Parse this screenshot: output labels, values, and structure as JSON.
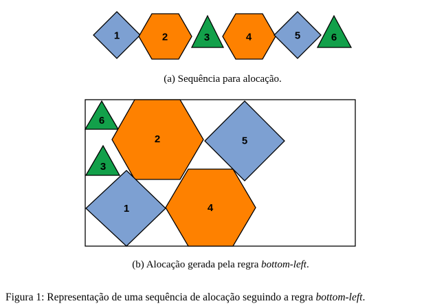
{
  "colors": {
    "diamond": "#7da0d2",
    "hexagon": "#fe8100",
    "triangle": "#12a04a",
    "stroke": "#000000"
  },
  "sequence": {
    "items": [
      {
        "shape": "diamond",
        "label": "1"
      },
      {
        "shape": "hexagon",
        "label": "2"
      },
      {
        "shape": "triangle",
        "label": "3"
      },
      {
        "shape": "hexagon",
        "label": "4"
      },
      {
        "shape": "diamond",
        "label": "5"
      },
      {
        "shape": "triangle",
        "label": "6"
      }
    ],
    "caption": "(a)  Sequência para alocação."
  },
  "allocation": {
    "items": [
      {
        "shape": "triangle",
        "label": "6"
      },
      {
        "shape": "hexagon",
        "label": "2"
      },
      {
        "shape": "diamond",
        "label": "5"
      },
      {
        "shape": "triangle",
        "label": "3"
      },
      {
        "shape": "diamond",
        "label": "1"
      },
      {
        "shape": "hexagon",
        "label": "4"
      }
    ],
    "caption_prefix": "(b)  Alocação gerada pela regra ",
    "caption_emph": "bottom-left",
    "caption_suffix": "."
  },
  "figure_caption": {
    "prefix": "Figura 1: Representação de uma sequência de alocação seguindo a regra ",
    "emph": "bottom-left",
    "suffix": "."
  }
}
